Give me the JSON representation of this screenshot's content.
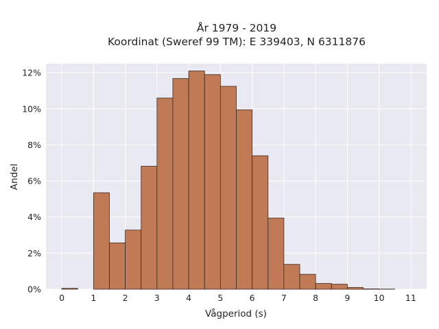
{
  "chart_data": {
    "type": "bar",
    "title_lines": [
      "År 1979 - 2019",
      "Koordinat (Sweref 99 TM): E 339403, N 6311876"
    ],
    "xlabel": "Vågperiod (s)",
    "ylabel": "Andel",
    "xlim": [
      -0.5,
      11.5
    ],
    "ylim": [
      0,
      12.5
    ],
    "x_ticks": [
      0,
      1,
      2,
      3,
      4,
      5,
      6,
      7,
      8,
      9,
      10,
      11
    ],
    "y_ticks": [
      0,
      2,
      4,
      6,
      8,
      10,
      12
    ],
    "y_tick_labels": [
      "0%",
      "2%",
      "4%",
      "6%",
      "8%",
      "10%",
      "12%"
    ],
    "bin_width": 0.5,
    "bins": [
      {
        "x0": 0.0,
        "value": 0.05
      },
      {
        "x0": 0.5,
        "value": 0.0
      },
      {
        "x0": 1.0,
        "value": 5.35
      },
      {
        "x0": 1.5,
        "value": 2.57
      },
      {
        "x0": 2.0,
        "value": 3.28
      },
      {
        "x0": 2.5,
        "value": 6.82
      },
      {
        "x0": 3.0,
        "value": 10.6
      },
      {
        "x0": 3.5,
        "value": 11.68
      },
      {
        "x0": 4.0,
        "value": 12.1
      },
      {
        "x0": 4.5,
        "value": 11.9
      },
      {
        "x0": 5.0,
        "value": 11.25
      },
      {
        "x0": 5.5,
        "value": 9.95
      },
      {
        "x0": 6.0,
        "value": 7.4
      },
      {
        "x0": 6.5,
        "value": 3.95
      },
      {
        "x0": 7.0,
        "value": 1.38
      },
      {
        "x0": 7.5,
        "value": 0.83
      },
      {
        "x0": 8.0,
        "value": 0.32
      },
      {
        "x0": 8.5,
        "value": 0.28
      },
      {
        "x0": 9.0,
        "value": 0.1
      },
      {
        "x0": 9.5,
        "value": 0.02
      },
      {
        "x0": 10.0,
        "value": 0.01
      }
    ],
    "grid": true,
    "colors": {
      "bar_fill": "#c07a55",
      "bar_edge": "#3b2a22",
      "plot_background": "#e9e9f1",
      "grid": "#ffffff"
    }
  }
}
